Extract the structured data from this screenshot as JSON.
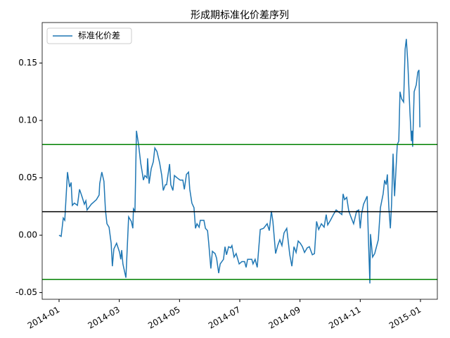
{
  "chart_data": {
    "type": "line",
    "title": "形成期标准化价差序列",
    "x": [
      0,
      0.07,
      0.14,
      0.19,
      0.28,
      0.35,
      0.4,
      0.44,
      0.51,
      0.61,
      0.68,
      0.77,
      0.84,
      0.89,
      0.93,
      1.07,
      1.24,
      1.33,
      1.35,
      1.42,
      1.49,
      1.54,
      1.59,
      1.66,
      1.73,
      1.77,
      1.82,
      1.91,
      2.01,
      2.05,
      2.08,
      2.12,
      2.22,
      2.31,
      2.4,
      2.45,
      2.47,
      2.52,
      2.57,
      2.64,
      2.71,
      2.76,
      2.8,
      2.85,
      2.92,
      2.94,
      2.99,
      3.06,
      3.13,
      3.18,
      3.25,
      3.34,
      3.41,
      3.46,
      3.53,
      3.57,
      3.62,
      3.67,
      3.71,
      3.78,
      3.83,
      3.92,
      4.02,
      4.11,
      4.16,
      4.23,
      4.3,
      4.34,
      4.41,
      4.48,
      4.53,
      4.58,
      4.65,
      4.69,
      4.81,
      4.86,
      4.93,
      4.97,
      5.04,
      5.09,
      5.18,
      5.23,
      5.3,
      5.35,
      5.46,
      5.51,
      5.56,
      5.63,
      5.7,
      5.74,
      5.81,
      5.88,
      5.98,
      6.07,
      6.16,
      6.21,
      6.26,
      6.4,
      6.44,
      6.51,
      6.58,
      6.68,
      6.79,
      6.91,
      6.98,
      7.05,
      7.1,
      7.19,
      7.26,
      7.33,
      7.4,
      7.47,
      7.56,
      7.66,
      7.73,
      7.8,
      7.87,
      7.94,
      8.01,
      8.08,
      8.15,
      8.24,
      8.31,
      8.41,
      8.48,
      8.55,
      8.62,
      8.71,
      8.8,
      8.87,
      8.92,
      9.01,
      9.11,
      9.2,
      9.29,
      9.39,
      9.43,
      9.48,
      9.55,
      9.62,
      9.69,
      9.78,
      9.88,
      9.95,
      10.0,
      10.04,
      10.11,
      10.23,
      10.27,
      10.32,
      10.34,
      10.41,
      10.48,
      10.6,
      10.67,
      10.76,
      10.81,
      10.86,
      10.9,
      10.95,
      11.0,
      11.04,
      11.09,
      11.14,
      11.23,
      11.28,
      11.32,
      11.37,
      11.44,
      11.49,
      11.53,
      11.58,
      11.65,
      11.7,
      11.72,
      11.74,
      11.79,
      11.86,
      11.91,
      11.95,
      11.98
    ],
    "series": [
      {
        "name": "标准化价差",
        "color": "#1f77b4",
        "values": [
          0.0,
          -0.001,
          0.015,
          0.013,
          0.055,
          0.042,
          0.046,
          0.026,
          0.028,
          0.026,
          0.04,
          0.033,
          0.027,
          0.03,
          0.022,
          0.027,
          0.031,
          0.035,
          0.045,
          0.055,
          0.047,
          0.022,
          0.01,
          0.007,
          -0.007,
          -0.027,
          -0.012,
          -0.007,
          -0.015,
          -0.021,
          -0.013,
          -0.025,
          -0.037,
          0.016,
          0.012,
          0.006,
          0.023,
          0.021,
          0.091,
          0.079,
          0.063,
          0.055,
          0.048,
          0.052,
          0.05,
          0.067,
          0.045,
          0.058,
          0.064,
          0.076,
          0.073,
          0.063,
          0.052,
          0.039,
          0.044,
          0.044,
          0.053,
          0.062,
          0.044,
          0.039,
          0.052,
          0.05,
          0.048,
          0.048,
          0.04,
          0.053,
          0.055,
          0.04,
          0.028,
          0.024,
          0.006,
          0.01,
          0.007,
          0.013,
          0.013,
          0.006,
          0.004,
          -0.007,
          -0.029,
          -0.014,
          -0.016,
          -0.02,
          -0.033,
          -0.025,
          -0.021,
          -0.01,
          -0.017,
          -0.01,
          -0.011,
          -0.009,
          -0.019,
          -0.016,
          -0.025,
          -0.023,
          -0.023,
          -0.028,
          -0.021,
          -0.021,
          -0.025,
          -0.021,
          -0.028,
          0.005,
          0.006,
          0.01,
          0.004,
          0.021,
          0.012,
          -0.016,
          -0.009,
          -0.004,
          -0.009,
          0.002,
          0.006,
          -0.017,
          -0.027,
          -0.01,
          -0.015,
          -0.005,
          -0.007,
          -0.01,
          -0.015,
          -0.011,
          -0.01,
          -0.017,
          -0.016,
          0.012,
          0.005,
          0.01,
          0.007,
          0.018,
          0.009,
          0.013,
          0.018,
          0.022,
          0.02,
          0.018,
          0.036,
          0.031,
          0.033,
          0.021,
          0.016,
          0.01,
          0.021,
          0.022,
          0.006,
          0.018,
          0.027,
          0.034,
          -0.002,
          -0.042,
          0.001,
          -0.019,
          -0.016,
          -0.004,
          0.024,
          0.036,
          0.048,
          0.044,
          0.053,
          0.024,
          0.006,
          0.027,
          0.071,
          0.034,
          0.079,
          0.082,
          0.125,
          0.119,
          0.116,
          0.162,
          0.171,
          0.15,
          0.107,
          0.082,
          0.091,
          0.077,
          0.125,
          0.131,
          0.142,
          0.144,
          0.094
        ]
      }
    ],
    "hlines": [
      {
        "value": 0.079,
        "color": "#008000"
      },
      {
        "value": 0.0205,
        "color": "#000000"
      },
      {
        "value": -0.0385,
        "color": "#008000"
      }
    ],
    "xlim": [
      -0.56,
      12.56
    ],
    "xticks": [
      {
        "value": 0,
        "label": "2014-01"
      },
      {
        "value": 2,
        "label": "2014-03"
      },
      {
        "value": 4,
        "label": "2014-05"
      },
      {
        "value": 6,
        "label": "2014-07"
      },
      {
        "value": 8,
        "label": "2014-09"
      },
      {
        "value": 10,
        "label": "2014-11"
      },
      {
        "value": 12,
        "label": "2015-01"
      }
    ],
    "ylim": [
      -0.0558,
      0.1853
    ],
    "yticks": [
      -0.05,
      {
        "value": 0,
        "label": "0.00"
      },
      0.05,
      {
        "value": 0.1,
        "label": "0.10"
      },
      0.15
    ],
    "legend": "upper left"
  }
}
